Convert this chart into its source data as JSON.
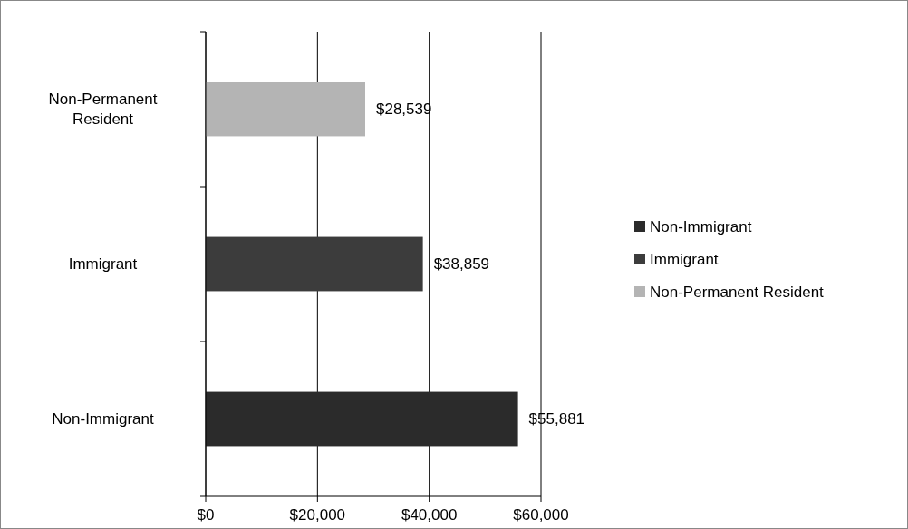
{
  "chart_data": {
    "type": "bar",
    "orientation": "horizontal",
    "categories": [
      "Non-Permanent Resident",
      "Immigrant",
      "Non-Immigrant"
    ],
    "series": [
      {
        "name": "Non-Immigrant",
        "color": "#2b2b2b",
        "values": [
          null,
          null,
          55881
        ]
      },
      {
        "name": "Immigrant",
        "color": "#3c3c3c",
        "values": [
          null,
          38859,
          null
        ]
      },
      {
        "name": "Non-Permanent Resident",
        "color": "#b4b4b4",
        "values": [
          28539,
          null,
          null
        ]
      }
    ],
    "value_labels": [
      [
        "$55,881"
      ],
      [
        "$38,859"
      ],
      [
        "$28,539"
      ]
    ],
    "xlim": [
      0,
      60000
    ],
    "xticks": [
      {
        "value": 0,
        "label": "$0"
      },
      {
        "value": 20000,
        "label": "$20,000"
      },
      {
        "value": 40000,
        "label": "$40,000"
      },
      {
        "value": 60000,
        "label": "$60,000"
      }
    ],
    "grid": "x",
    "legend": "right"
  }
}
